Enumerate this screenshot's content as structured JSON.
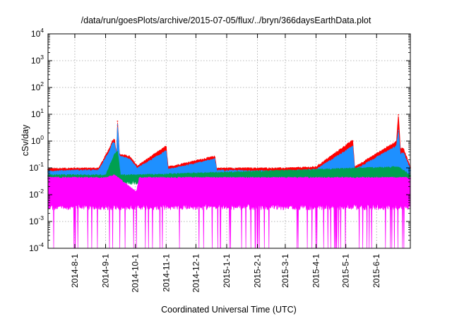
{
  "chart_data": {
    "type": "line",
    "title": "/data/run/goesPlots/archive/2015-07-05/flux/../bryn/366daysEarthData.plot",
    "xlabel": "Coordinated Universal Time (UTC)",
    "ylabel": "cSv/day",
    "yscale": "log",
    "ylim": [
      0.0001,
      10000
    ],
    "xlim": [
      "2014-07-05",
      "2015-07-05"
    ],
    "grid": true,
    "legend": "none",
    "y_ticks": [
      {
        "base": "10",
        "exp": "-4",
        "value": 0.0001
      },
      {
        "base": "10",
        "exp": "-3",
        "value": 0.001
      },
      {
        "base": "10",
        "exp": "-2",
        "value": 0.01
      },
      {
        "base": "10",
        "exp": "-1",
        "value": 0.1
      },
      {
        "base": "10",
        "exp": "0",
        "value": 1
      },
      {
        "base": "10",
        "exp": "1",
        "value": 10
      },
      {
        "base": "10",
        "exp": "2",
        "value": 100
      },
      {
        "base": "10",
        "exp": "3",
        "value": 1000
      },
      {
        "base": "10",
        "exp": "4",
        "value": 10000
      }
    ],
    "x_ticks": [
      {
        "label": "2014-8-1",
        "date": "2014-08-01"
      },
      {
        "label": "2014-9-1",
        "date": "2014-09-01"
      },
      {
        "label": "2014-10-1",
        "date": "2014-10-01"
      },
      {
        "label": "2014-11-1",
        "date": "2014-11-01"
      },
      {
        "label": "2014-12-1",
        "date": "2014-12-01"
      },
      {
        "label": "2015-1-1",
        "date": "2015-01-01"
      },
      {
        "label": "2015-2-1",
        "date": "2015-02-01"
      },
      {
        "label": "2015-3-1",
        "date": "2015-03-01"
      },
      {
        "label": "2015-4-1",
        "date": "2015-04-01"
      },
      {
        "label": "2015-5-1",
        "date": "2015-05-01"
      },
      {
        "label": "2015-6-1",
        "date": "2015-06-01"
      }
    ],
    "series": [
      {
        "color": "#ff0000",
        "points": [
          [
            "2014-07-05",
            0.085
          ],
          [
            "2014-08-01",
            0.09
          ],
          [
            "2014-08-25",
            0.09
          ],
          [
            "2014-09-05",
            0.5
          ],
          [
            "2014-09-08",
            1.0
          ],
          [
            "2014-09-10",
            1.1
          ],
          [
            "2014-09-12",
            0.3
          ],
          [
            "2014-09-13",
            5.5
          ],
          [
            "2014-09-15",
            0.3
          ],
          [
            "2014-09-25",
            0.25
          ],
          [
            "2014-10-03",
            0.11
          ],
          [
            "2014-11-01",
            0.6
          ],
          [
            "2014-11-03",
            0.1
          ],
          [
            "2014-12-20",
            0.25
          ],
          [
            "2014-12-22",
            0.09
          ],
          [
            "2015-03-01",
            0.09
          ],
          [
            "2015-04-01",
            0.1
          ],
          [
            "2015-05-08",
            1.0
          ],
          [
            "2015-05-10",
            0.1
          ],
          [
            "2015-06-21",
            0.9
          ],
          [
            "2015-06-23",
            9.5
          ],
          [
            "2015-06-25",
            0.5
          ],
          [
            "2015-06-28",
            0.5
          ],
          [
            "2015-07-05",
            0.1
          ]
        ]
      },
      {
        "color": "#1e90ff",
        "points": [
          [
            "2014-07-05",
            0.07
          ],
          [
            "2014-08-01",
            0.075
          ],
          [
            "2014-08-25",
            0.075
          ],
          [
            "2014-09-05",
            0.4
          ],
          [
            "2014-09-08",
            0.8
          ],
          [
            "2014-09-10",
            0.8
          ],
          [
            "2014-09-12",
            0.25
          ],
          [
            "2014-09-13",
            4.0
          ],
          [
            "2014-09-15",
            0.25
          ],
          [
            "2014-09-25",
            0.2
          ],
          [
            "2014-10-03",
            0.09
          ],
          [
            "2014-11-01",
            0.4
          ],
          [
            "2014-11-03",
            0.08
          ],
          [
            "2014-12-20",
            0.2
          ],
          [
            "2014-12-22",
            0.075
          ],
          [
            "2015-03-01",
            0.07
          ],
          [
            "2015-04-01",
            0.08
          ],
          [
            "2015-05-08",
            0.6
          ],
          [
            "2015-05-10",
            0.08
          ],
          [
            "2015-06-21",
            0.6
          ],
          [
            "2015-06-23",
            2.5
          ],
          [
            "2015-06-25",
            0.3
          ],
          [
            "2015-06-28",
            0.35
          ],
          [
            "2015-07-05",
            0.08
          ]
        ]
      },
      {
        "color": "#00a050",
        "points": [
          [
            "2014-07-05",
            0.05
          ],
          [
            "2014-09-01",
            0.05
          ],
          [
            "2014-09-10",
            0.3
          ],
          [
            "2014-09-13",
            0.4
          ],
          [
            "2014-09-16",
            0.05
          ],
          [
            "2014-10-02",
            0.05
          ],
          [
            "2015-06-23",
            0.1
          ],
          [
            "2015-07-05",
            0.05
          ]
        ]
      },
      {
        "color": "#ff00ff",
        "points": [
          [
            "2014-07-05",
            0.04
          ],
          [
            "2014-09-01",
            0.04
          ],
          [
            "2014-09-10",
            0.05
          ],
          [
            "2014-10-02",
            0.012
          ],
          [
            "2014-10-05",
            0.04
          ],
          [
            "2015-07-05",
            0.04
          ]
        ]
      }
    ]
  }
}
